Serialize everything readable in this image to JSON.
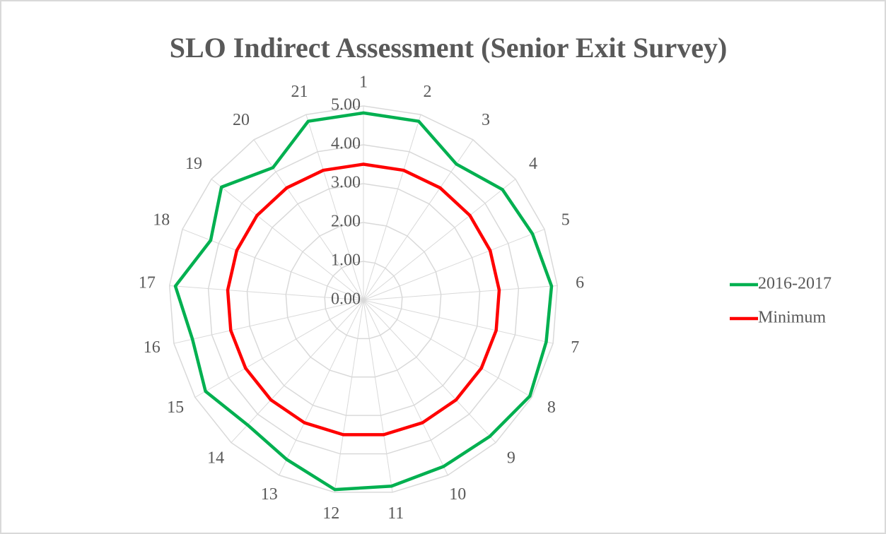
{
  "chart_data": {
    "type": "radar",
    "title": "SLO Indirect Assessment (Senior Exit Survey)",
    "categories": [
      "1",
      "2",
      "3",
      "4",
      "5",
      "6",
      "7",
      "8",
      "9",
      "10",
      "11",
      "12",
      "13",
      "14",
      "15",
      "16",
      "17",
      "18",
      "19",
      "20",
      "21"
    ],
    "series": [
      {
        "name": "2016-2017",
        "color": "#00b050",
        "values": [
          4.82,
          4.82,
          4.24,
          4.57,
          4.67,
          4.85,
          4.82,
          4.94,
          4.78,
          4.75,
          4.84,
          4.93,
          4.55,
          4.38,
          4.69,
          4.51,
          4.85,
          4.22,
          4.67,
          4.13,
          4.82
        ]
      },
      {
        "name": "Minimum",
        "color": "#ff0000",
        "values": [
          3.5,
          3.5,
          3.5,
          3.5,
          3.5,
          3.5,
          3.5,
          3.5,
          3.5,
          3.5,
          3.5,
          3.5,
          3.5,
          3.5,
          3.5,
          3.5,
          3.5,
          3.5,
          3.5,
          3.5,
          3.5
        ]
      }
    ],
    "ylim": [
      0,
      5
    ],
    "yticks": [
      {
        "value": 0,
        "label": "0.00"
      },
      {
        "value": 1,
        "label": "1.00"
      },
      {
        "value": 2,
        "label": "2.00"
      },
      {
        "value": 3,
        "label": "3.00"
      },
      {
        "value": 4,
        "label": "4.00"
      },
      {
        "value": 5,
        "label": "5.00"
      }
    ],
    "grid": true,
    "legend": "right"
  }
}
